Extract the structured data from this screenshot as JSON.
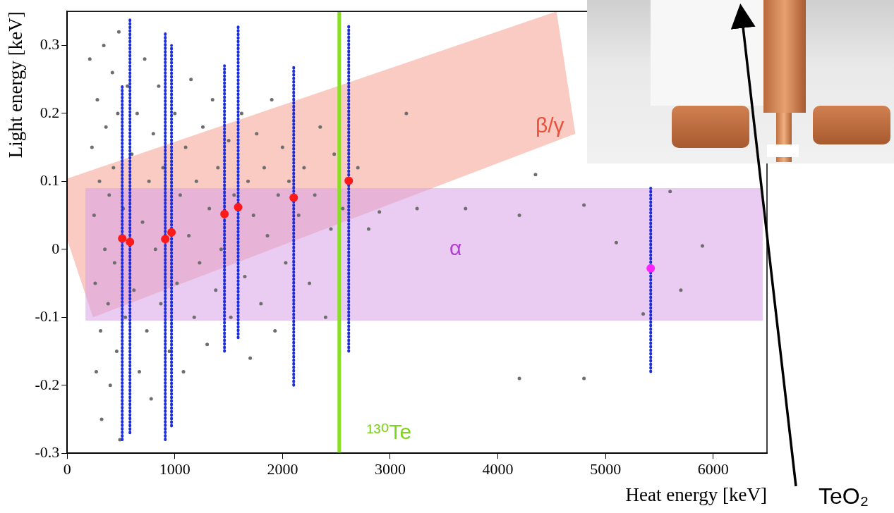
{
  "chart_data": {
    "type": "scatter",
    "xlabel": "Heat energy [keV]",
    "ylabel": "Light energy [keV]",
    "xlim": [
      0,
      6500
    ],
    "ylim": [
      -0.3,
      0.35
    ],
    "xticks": [
      0,
      1000,
      2000,
      3000,
      4000,
      5000,
      6000
    ],
    "yticks": [
      -0.3,
      -0.2,
      -0.1,
      0,
      0.1,
      0.2,
      0.3
    ],
    "grid": false,
    "series": [
      {
        "type": "scatter",
        "color": "#6e6e6e",
        "marker": "circle",
        "x": [
          210,
          230,
          250,
          260,
          270,
          280,
          300,
          310,
          320,
          340,
          350,
          360,
          380,
          390,
          400,
          420,
          430,
          440,
          460,
          470,
          480,
          490,
          520,
          540,
          560,
          600,
          620,
          650,
          670,
          700,
          720,
          740,
          760,
          780,
          800,
          820,
          850,
          870,
          890,
          950,
          1000,
          1020,
          1050,
          1080,
          1100,
          1130,
          1150,
          1180,
          1200,
          1230,
          1260,
          1300,
          1320,
          1350,
          1380,
          1400,
          1430,
          1500,
          1520,
          1550,
          1620,
          1650,
          1680,
          1700,
          1730,
          1760,
          1800,
          1830,
          1860,
          1900,
          1930,
          1960,
          2000,
          2030,
          2060,
          2150,
          2200,
          2250,
          2300,
          2350,
          2400,
          2450,
          2480,
          2560,
          2700,
          2800,
          2900,
          3150,
          3250,
          3700,
          4200,
          4200,
          4350,
          4800,
          4800,
          5100,
          5350,
          5600,
          5700,
          5900
        ],
        "values": [
          0.28,
          0.15,
          0.05,
          -0.05,
          -0.18,
          0.22,
          0.1,
          -0.12,
          -0.25,
          0.3,
          0,
          0.18,
          -0.08,
          0.08,
          -0.2,
          0.26,
          0.12,
          -0.02,
          -0.15,
          0.2,
          0.32,
          -0.28,
          0.06,
          -0.1,
          0.24,
          0.14,
          -0.06,
          0.2,
          -0.18,
          0.04,
          0.28,
          -0.12,
          0.1,
          -0.22,
          0.17,
          0,
          0.24,
          -0.08,
          0.12,
          -0.15,
          0.2,
          -0.05,
          0.08,
          -0.18,
          0.15,
          0.02,
          0.25,
          -0.1,
          0.1,
          -0.02,
          0.18,
          -0.14,
          0.06,
          0.22,
          -0.06,
          0.12,
          0,
          0.16,
          -0.1,
          0.08,
          0.2,
          -0.04,
          0.1,
          -0.16,
          0.05,
          0.17,
          -0.08,
          0.12,
          0.02,
          0.22,
          -0.12,
          0.08,
          0.15,
          -0.02,
          0.1,
          0.05,
          0.12,
          -0.05,
          0.08,
          0.18,
          -0.1,
          0.03,
          0.14,
          0.06,
          0.12,
          0.03,
          0.055,
          0.2,
          0.06,
          0.06,
          0.05,
          -0.19,
          0.11,
          0.065,
          -0.19,
          0.01,
          -0.095,
          0.085,
          -0.06,
          0.005
        ]
      },
      {
        "type": "range",
        "color": "#1a2ee0",
        "line_style": "dotted",
        "x": [
          511,
          583,
          911,
          969,
          1461,
          1588,
          2104,
          2615,
          5420
        ],
        "low": [
          -0.28,
          -0.27,
          -0.28,
          -0.26,
          -0.15,
          -0.13,
          -0.2,
          -0.15,
          -0.18
        ],
        "high": [
          0.24,
          0.34,
          0.32,
          0.3,
          0.27,
          0.33,
          0.27,
          0.33,
          0.09
        ]
      },
      {
        "type": "scatter",
        "color": "#ff1a1a",
        "marker": "circle",
        "x": [
          511,
          583,
          911,
          969,
          1461,
          1588,
          2104,
          2615
        ],
        "values": [
          0.016,
          0.011,
          0.015,
          0.025,
          0.052,
          0.062,
          0.076,
          0.101
        ]
      },
      {
        "type": "scatter",
        "color": "#ff22ff",
        "marker": "circle",
        "x": [
          5420
        ],
        "values": [
          -0.028
        ]
      }
    ],
    "regions": [
      {
        "color": "#f4a090",
        "points": [
          [
            -170,
            0.095
          ],
          [
            4545,
            0.35
          ],
          [
            4720,
            0.17
          ],
          [
            240,
            -0.1
          ]
        ]
      },
      {
        "color": "#d8a0e8",
        "points": [
          [
            170,
            -0.105
          ],
          [
            6460,
            -0.105
          ],
          [
            6460,
            0.09
          ],
          [
            170,
            0.09
          ]
        ]
      }
    ],
    "vlines": [
      {
        "x": 2527,
        "color": "#88e020"
      }
    ],
    "annotations": [
      {
        "text": "β/γ",
        "x": 4350,
        "y": 0.18,
        "color": "#e8503a"
      },
      {
        "text": "α",
        "x": 3550,
        "y": 0.0,
        "color": "#b040d0"
      },
      {
        "text": "¹³⁰Te",
        "x": 2780,
        "y": -0.27,
        "color": "#7ed321"
      }
    ]
  },
  "photo": {
    "label": "TeO₂"
  }
}
